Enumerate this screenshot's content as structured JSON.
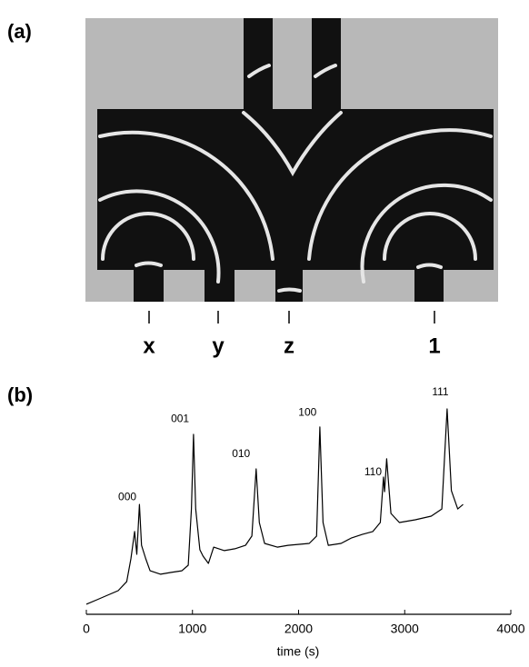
{
  "panel_a": {
    "label": "(a)",
    "inputs": [
      "x",
      "y",
      "z",
      "1"
    ]
  },
  "panel_b": {
    "label": "(b)"
  },
  "chart_data": {
    "type": "line",
    "xlabel": "time (s)",
    "color": "#000000",
    "x": [
      0,
      100,
      200,
      300,
      380,
      420,
      455,
      475,
      500,
      520,
      560,
      600,
      700,
      800,
      900,
      960,
      990,
      1010,
      1030,
      1070,
      1100,
      1150,
      1200,
      1300,
      1400,
      1500,
      1560,
      1600,
      1630,
      1680,
      1800,
      1900,
      2100,
      2170,
      2200,
      2230,
      2280,
      2400,
      2500,
      2600,
      2700,
      2770,
      2800,
      2810,
      2830,
      2870,
      2950,
      3100,
      3250,
      3350,
      3400,
      3440,
      3500,
      3550
    ],
    "values": [
      4.9,
      7.1,
      9.3,
      11.5,
      15.9,
      27.0,
      40.3,
      29.2,
      53.5,
      33.6,
      27.0,
      21.2,
      19.5,
      20.4,
      21.2,
      23.9,
      51.3,
      87.6,
      51.3,
      31.4,
      28.3,
      24.8,
      32.7,
      31.0,
      31.9,
      33.6,
      38.1,
      70.8,
      44.7,
      34.5,
      32.7,
      33.6,
      34.5,
      38.1,
      91.2,
      44.7,
      33.6,
      34.5,
      37.2,
      38.9,
      40.3,
      44.7,
      66.8,
      59.7,
      75.7,
      49.1,
      44.7,
      46.0,
      47.8,
      51.3,
      100,
      60.2,
      51.3,
      53.5
    ],
    "xlim": [
      0,
      4000
    ],
    "xticks": [
      0,
      1000,
      2000,
      3000,
      4000
    ],
    "ylim": [
      0,
      100
    ],
    "annotations": [
      {
        "text": "000",
        "x": 386,
        "y": 57
      },
      {
        "text": "001",
        "x": 883,
        "y": 95
      },
      {
        "text": "010",
        "x": 1458,
        "y": 78
      },
      {
        "text": "100",
        "x": 2084,
        "y": 98
      },
      {
        "text": "110",
        "x": 2702,
        "y": 69
      },
      {
        "text": "111",
        "x": 3336,
        "y": 108
      }
    ]
  }
}
